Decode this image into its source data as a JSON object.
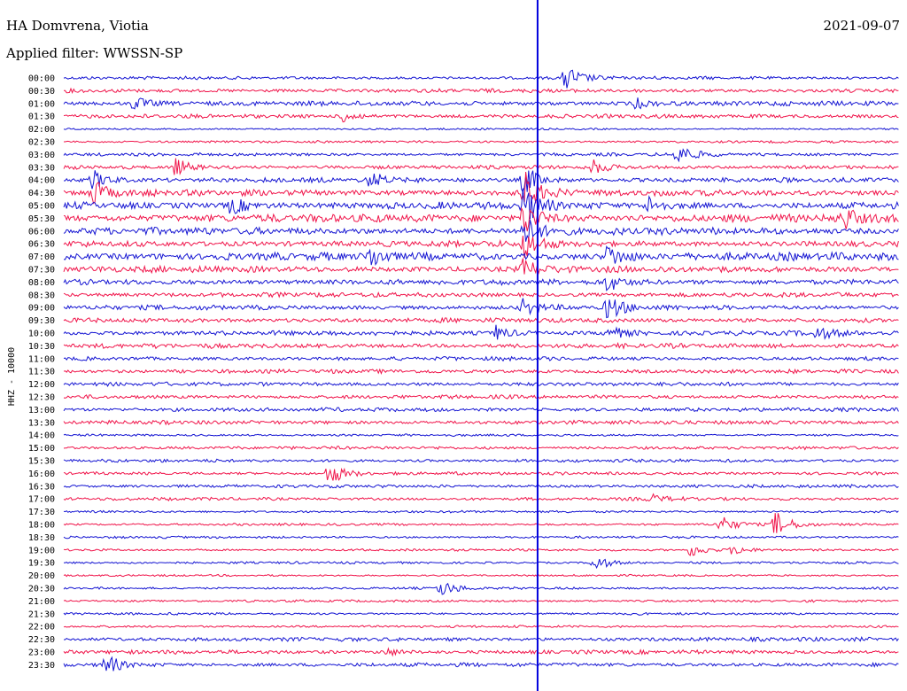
{
  "header": {
    "station": "HA Domvrena, Viotia",
    "date": "2021-09-07",
    "filter_text": "Applied filter: WWSSN-SP",
    "channel_label": "HHZ - 10000"
  },
  "colors": {
    "trace_a": "#1414d2",
    "trace_b": "#f0144a",
    "marker_line": "#0000dd",
    "background": "#ffffff"
  },
  "chart_data": {
    "type": "line",
    "title": "HA Domvrena, Viotia",
    "subtitle": "Applied filter: WWSSN-SP",
    "date": "2021-09-07",
    "ylabel": "HHZ - 10000",
    "grid": false,
    "legend": "none",
    "row_labels": [
      "00:00",
      "00:30",
      "01:00",
      "01:30",
      "02:00",
      "02:30",
      "03:00",
      "03:30",
      "04:00",
      "04:30",
      "05:00",
      "05:30",
      "06:00",
      "06:30",
      "07:00",
      "07:30",
      "08:00",
      "08:30",
      "09:00",
      "09:30",
      "10:00",
      "10:30",
      "11:00",
      "11:30",
      "12:00",
      "12:30",
      "13:00",
      "13:30",
      "14:00",
      "15:00",
      "15:30",
      "16:00",
      "16:30",
      "17:00",
      "17:30",
      "18:00",
      "18:30",
      "19:00",
      "19:30",
      "20:00",
      "20:30",
      "21:00",
      "21:30",
      "22:00",
      "22:30",
      "23:00",
      "23:30"
    ],
    "row_colors": "alternating trace_a / trace_b starting with trace_a",
    "row_minutes": 30,
    "noise_level": [
      2,
      2.5,
      3,
      2.5,
      1.2,
      1.5,
      2,
      2.5,
      3,
      4,
      4.5,
      5,
      4.5,
      4,
      5,
      4,
      3.5,
      3,
      3,
      3,
      3,
      3,
      2.5,
      2.5,
      2.5,
      2.5,
      2.5,
      2.5,
      1.5,
      2,
      2,
      2,
      2,
      2,
      1.5,
      1.5,
      1.5,
      1.5,
      1.5,
      1.2,
      1.5,
      1.5,
      1.5,
      1.5,
      2.5,
      2.5,
      2.5
    ],
    "events": [
      {
        "row": 0,
        "minute": 18,
        "amp": 16
      },
      {
        "row": 2,
        "minute": 2.5,
        "amp": 8
      },
      {
        "row": 2,
        "minute": 20.5,
        "amp": 6
      },
      {
        "row": 3,
        "minute": 10,
        "amp": 7
      },
      {
        "row": 6,
        "minute": 22,
        "amp": 14
      },
      {
        "row": 7,
        "minute": 4,
        "amp": 10
      },
      {
        "row": 7,
        "minute": 19,
        "amp": 8
      },
      {
        "row": 8,
        "minute": 1,
        "amp": 12
      },
      {
        "row": 8,
        "minute": 11,
        "amp": 9
      },
      {
        "row": 8,
        "minute": 16.5,
        "amp": 18
      },
      {
        "row": 9,
        "minute": 1,
        "amp": 14
      },
      {
        "row": 9,
        "minute": 16.5,
        "amp": 25
      },
      {
        "row": 10,
        "minute": 16.5,
        "amp": 22
      },
      {
        "row": 10,
        "minute": 6,
        "amp": 10
      },
      {
        "row": 10,
        "minute": 21,
        "amp": 9
      },
      {
        "row": 11,
        "minute": 16.5,
        "amp": 20
      },
      {
        "row": 11,
        "minute": 28,
        "amp": 12
      },
      {
        "row": 12,
        "minute": 16.5,
        "amp": 18
      },
      {
        "row": 13,
        "minute": 16.5,
        "amp": 16
      },
      {
        "row": 14,
        "minute": 11,
        "amp": 10
      },
      {
        "row": 14,
        "minute": 19.5,
        "amp": 14
      },
      {
        "row": 15,
        "minute": 16.5,
        "amp": 12
      },
      {
        "row": 16,
        "minute": 19.5,
        "amp": 10
      },
      {
        "row": 18,
        "minute": 19.5,
        "amp": 14
      },
      {
        "row": 18,
        "minute": 16.5,
        "amp": 10
      },
      {
        "row": 20,
        "minute": 15.5,
        "amp": 8
      },
      {
        "row": 20,
        "minute": 19.5,
        "amp": 10
      },
      {
        "row": 20,
        "minute": 27,
        "amp": 8
      },
      {
        "row": 31,
        "minute": 9.5,
        "amp": 14
      },
      {
        "row": 33,
        "minute": 21,
        "amp": 6
      },
      {
        "row": 35,
        "minute": 23.5,
        "amp": 12
      },
      {
        "row": 35,
        "minute": 25.5,
        "amp": 16
      },
      {
        "row": 37,
        "minute": 22.5,
        "amp": 8
      },
      {
        "row": 37,
        "minute": 24,
        "amp": 6
      },
      {
        "row": 38,
        "minute": 19,
        "amp": 10
      },
      {
        "row": 40,
        "minute": 13.5,
        "amp": 10
      },
      {
        "row": 45,
        "minute": 11.5,
        "amp": 5
      },
      {
        "row": 46,
        "minute": 1.5,
        "amp": 12
      }
    ],
    "marker_minute": 17
  }
}
